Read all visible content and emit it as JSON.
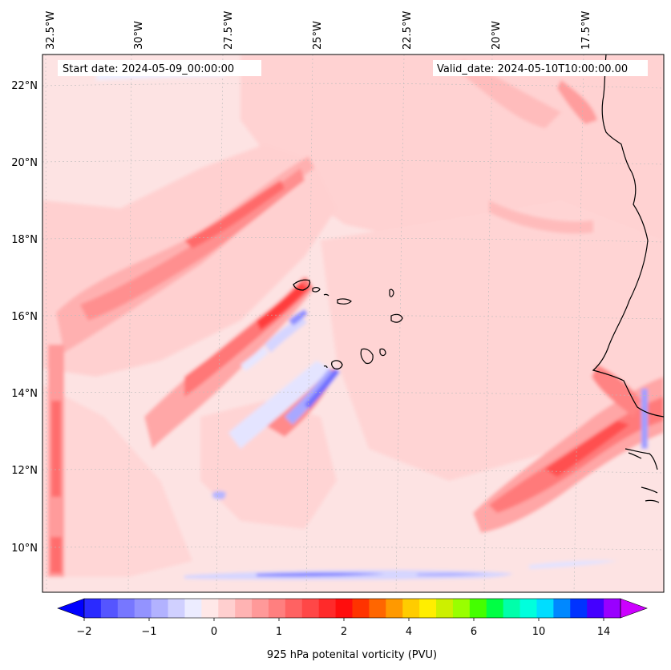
{
  "map": {
    "start_date": "Start date: 2024-05-09_00:00:00",
    "valid_date": "Valid_date: 2024-05-10T10:00:00.00",
    "lon_labels": [
      "32.5°W",
      "30°W",
      "27.5°W",
      "25°W",
      "22.5°W",
      "20°W",
      "17.5°W"
    ],
    "lat_labels": [
      "22°N",
      "20°N",
      "18°N",
      "16°N",
      "14°N",
      "12°N",
      "10°N"
    ],
    "background_color": "#fde6e6",
    "coast_color": "#000000"
  },
  "colorbar": {
    "title": "925 hPa potenital vorticity (PVU)",
    "tick_labels": [
      "−2",
      "−1",
      "0",
      "1",
      "2",
      "4",
      "6",
      "10",
      "14"
    ],
    "colors": [
      "#0000ff",
      "#2a2aff",
      "#5555ff",
      "#7777ff",
      "#9393ff",
      "#b2b2ff",
      "#d0d0ff",
      "#ececff",
      "#ffe8e8",
      "#ffcfcf",
      "#ffb3b3",
      "#ff9999",
      "#ff7f7f",
      "#ff6262",
      "#ff4747",
      "#ff2a2a",
      "#ff0d0d",
      "#ff3300",
      "#ff6600",
      "#ff9900",
      "#ffcc00",
      "#ffee00",
      "#ccf000",
      "#99ff00",
      "#44ff00",
      "#00ff44",
      "#00ffaa",
      "#00ffdd",
      "#00ddff",
      "#0088ff",
      "#0033ff",
      "#4400ff",
      "#9900ff",
      "#cc00ff"
    ]
  }
}
